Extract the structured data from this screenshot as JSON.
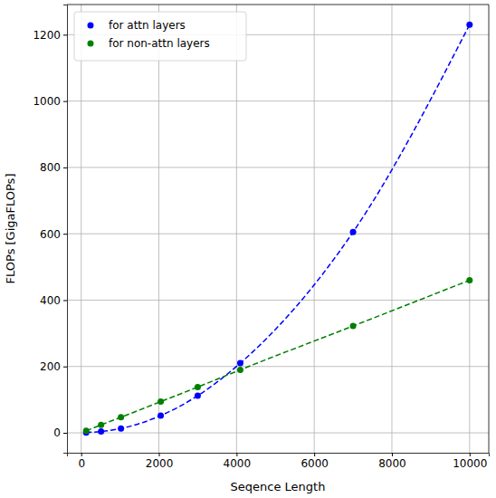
{
  "chart_data": {
    "type": "scatter",
    "x_label": "Seqence Length",
    "y_label": "FLOPs [GigaFLOPs]",
    "x": [
      128,
      512,
      1024,
      2048,
      3000,
      4096,
      7000,
      10000
    ],
    "series": [
      {
        "name": "for attn layers",
        "color": "#0000ff",
        "marker": "circle",
        "line_style": "dashed",
        "values": [
          1,
          4,
          13,
          52,
          112,
          210,
          605,
          1230
        ]
      },
      {
        "name": "for non-attn layers",
        "color": "#008000",
        "marker": "circle",
        "line_style": "dashed",
        "values": [
          6,
          24,
          47,
          94,
          138,
          190,
          322,
          460
        ]
      }
    ],
    "xlim": [
      -366,
      10494
    ],
    "xticks": [
      0,
      2000,
      4000,
      6000,
      8000,
      10000
    ],
    "ylim": [
      -60,
      1291
    ],
    "yticks": [
      0,
      200,
      400,
      600,
      800,
      1000,
      1200
    ],
    "grid": true,
    "legend": "upper left"
  }
}
